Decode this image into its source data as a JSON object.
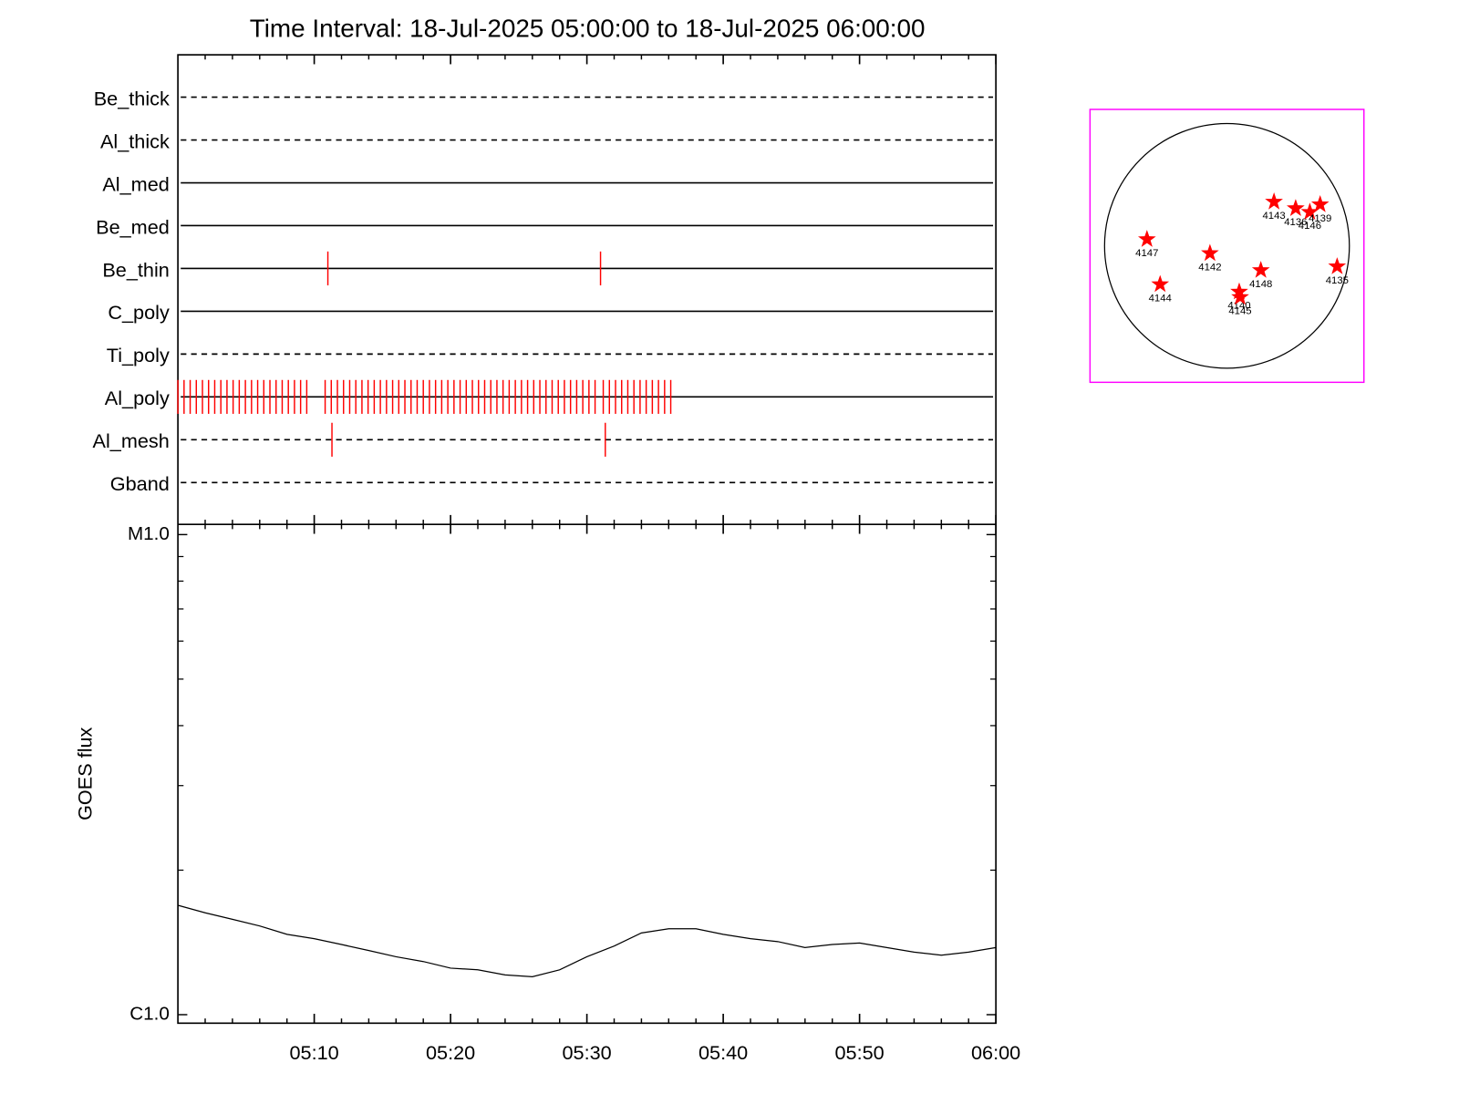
{
  "chart_data": [
    {
      "type": "timeline",
      "title": "Time Interval: 18-Jul-2025 05:00:00 to 18-Jul-2025 06:00:00",
      "line_color": "#000000",
      "mark_color": "#ff0000",
      "channels": [
        {
          "name": "Be_thick",
          "line_style": "dashed",
          "times": []
        },
        {
          "name": "Al_thick",
          "line_style": "dashed",
          "times": []
        },
        {
          "name": "Al_med",
          "line_style": "solid",
          "times": []
        },
        {
          "name": "Be_med",
          "line_style": "solid",
          "times": []
        },
        {
          "name": "Be_thin",
          "line_style": "solid",
          "times": [
            11.0,
            31.0
          ]
        },
        {
          "name": "C_poly",
          "line_style": "solid",
          "times": []
        },
        {
          "name": "Ti_poly",
          "line_style": "dashed",
          "times": []
        },
        {
          "name": "Al_poly",
          "line_style": "solid",
          "times": [
            0,
            0.45,
            0.9,
            1.35,
            1.8,
            2.25,
            2.7,
            3.15,
            3.6,
            4.05,
            4.5,
            4.95,
            5.4,
            5.85,
            6.3,
            6.75,
            7.2,
            7.65,
            8.1,
            8.55,
            9.0,
            9.45,
            10.8,
            11.25,
            11.7,
            12.15,
            12.6,
            13.05,
            13.5,
            13.95,
            14.4,
            14.85,
            15.3,
            15.75,
            16.2,
            16.65,
            17.1,
            17.55,
            18.0,
            18.45,
            18.9,
            19.35,
            19.8,
            20.25,
            20.7,
            21.15,
            21.6,
            22.05,
            22.5,
            22.95,
            23.4,
            23.85,
            24.3,
            24.75,
            25.2,
            25.65,
            26.1,
            26.55,
            27.0,
            27.45,
            27.9,
            28.35,
            28.8,
            29.25,
            29.7,
            30.15,
            30.6,
            31.2,
            31.65,
            32.1,
            32.55,
            33.0,
            33.45,
            33.9,
            34.35,
            34.8,
            35.25,
            35.7,
            36.15
          ]
        },
        {
          "name": "Al_mesh",
          "line_style": "dashed",
          "times": [
            11.3,
            31.35
          ]
        },
        {
          "name": "Gband",
          "line_style": "dashed",
          "times": []
        }
      ]
    },
    {
      "type": "line",
      "ylabel": "GOES flux",
      "color": "#000000",
      "log_scale": true,
      "x": [
        0,
        2,
        4,
        6,
        8,
        10,
        12,
        14,
        16,
        18,
        20,
        22,
        24,
        26,
        28,
        30,
        32,
        34,
        36,
        38,
        40,
        42,
        44,
        46,
        48,
        50,
        52,
        54,
        56,
        58,
        60
      ],
      "values": [
        1.69e-06,
        1.63e-06,
        1.58e-06,
        1.53e-06,
        1.47e-06,
        1.44e-06,
        1.4e-06,
        1.36e-06,
        1.32e-06,
        1.29e-06,
        1.25e-06,
        1.24e-06,
        1.21e-06,
        1.2e-06,
        1.24e-06,
        1.32e-06,
        1.39e-06,
        1.48e-06,
        1.51e-06,
        1.51e-06,
        1.47e-06,
        1.44e-06,
        1.42e-06,
        1.38e-06,
        1.4e-06,
        1.41e-06,
        1.38e-06,
        1.35e-06,
        1.33e-06,
        1.35e-06,
        1.38e-06
      ],
      "xlim": [
        0,
        60
      ],
      "xticks": [
        {
          "value": 10,
          "label": "05:10"
        },
        {
          "value": 20,
          "label": "05:20"
        },
        {
          "value": 30,
          "label": "05:30"
        },
        {
          "value": 40,
          "label": "05:40"
        },
        {
          "value": 50,
          "label": "05:50"
        },
        {
          "value": 60,
          "label": "06:00"
        }
      ],
      "xminorticks": [
        2,
        4,
        6,
        8,
        12,
        14,
        16,
        18,
        22,
        24,
        26,
        28,
        32,
        34,
        36,
        38,
        42,
        44,
        46,
        48,
        52,
        54,
        56,
        58
      ],
      "ylim": [
        9.6e-07,
        1.05e-05
      ],
      "yticks": [
        {
          "value": 1e-06,
          "label": "C1.0"
        },
        {
          "value": 1e-05,
          "label": "M1.0"
        }
      ],
      "yminorticks": [
        2e-06,
        3e-06,
        4e-06,
        5e-06,
        6e-06,
        7e-06,
        8e-06,
        9e-06
      ]
    },
    {
      "type": "scatter",
      "frame_color": "#ff00ff",
      "marker_color": "#ff0000",
      "disk_radius": 950,
      "xlim": [
        -1063,
        1063
      ],
      "ylim": [
        -1063,
        1063
      ],
      "regions": [
        {
          "label": "4143",
          "x": 365,
          "y": 343
        },
        {
          "label": "4136",
          "x": 533,
          "y": 292
        },
        {
          "label": "4146",
          "x": 643,
          "y": 263
        },
        {
          "label": "4139",
          "x": 723,
          "y": 322
        },
        {
          "label": "4147",
          "x": -621,
          "y": 51
        },
        {
          "label": "4142",
          "x": -132,
          "y": -58
        },
        {
          "label": "4148",
          "x": 263,
          "y": -190
        },
        {
          "label": "4135",
          "x": 855,
          "y": -161
        },
        {
          "label": "4144",
          "x": -519,
          "y": -300
        },
        {
          "label": "4140",
          "x": 95,
          "y": -358
        },
        {
          "label": "4145",
          "x": 102,
          "y": -400
        }
      ]
    }
  ]
}
